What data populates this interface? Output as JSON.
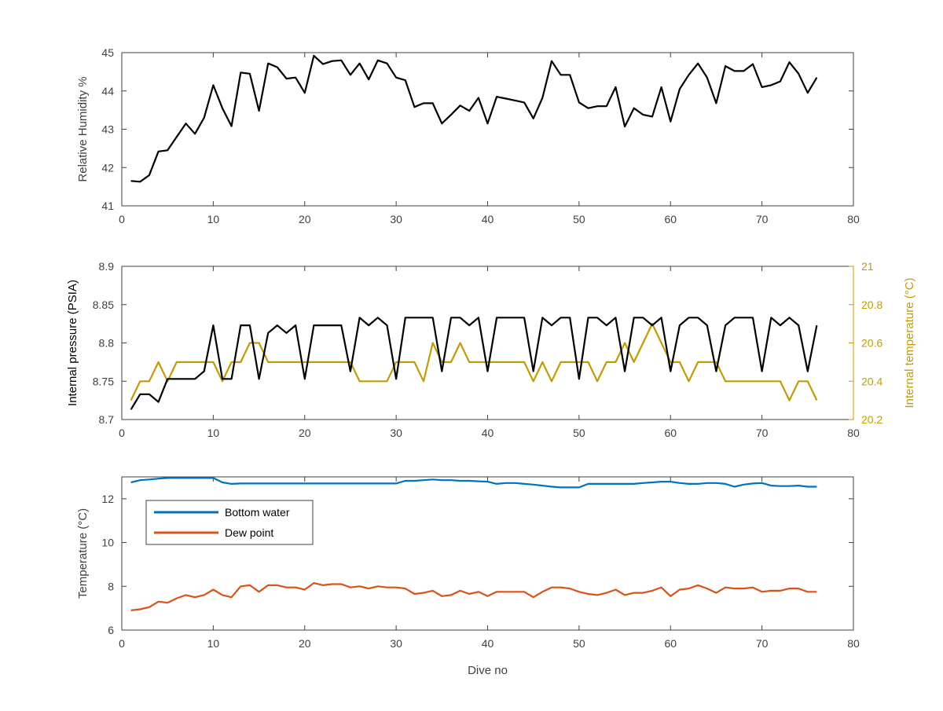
{
  "figure": {
    "xlabel": "Dive no"
  },
  "chart_data": [
    {
      "type": "line",
      "title": "",
      "xlabel": "",
      "ylabel": "Relative Humidity %",
      "xlim": [
        0,
        80
      ],
      "ylim": [
        41,
        45
      ],
      "xticks": [
        0,
        10,
        20,
        30,
        40,
        50,
        60,
        70,
        80
      ],
      "yticks": [
        41,
        42,
        43,
        44,
        45
      ],
      "grid": false,
      "series": [
        {
          "color": "#000000",
          "x": [
            1,
            2,
            3,
            4,
            5,
            6,
            7,
            8,
            9,
            10,
            11,
            12,
            13,
            14,
            15,
            16,
            17,
            18,
            19,
            20,
            21,
            22,
            23,
            24,
            25,
            26,
            27,
            28,
            29,
            30,
            31,
            32,
            33,
            34,
            35,
            36,
            37,
            38,
            39,
            40,
            41,
            42,
            43,
            44,
            45,
            46,
            47,
            48,
            49,
            50,
            51,
            52,
            53,
            54,
            55,
            56,
            57,
            58,
            59,
            60,
            61,
            62,
            63,
            64,
            65,
            66,
            67,
            68,
            69,
            70,
            71,
            72,
            73,
            74,
            75,
            76
          ],
          "y": [
            41.65,
            41.63,
            41.8,
            42.42,
            42.45,
            42.8,
            43.15,
            42.88,
            43.3,
            44.15,
            43.55,
            43.08,
            44.48,
            44.45,
            43.48,
            44.72,
            44.62,
            44.32,
            44.35,
            43.95,
            44.92,
            44.7,
            44.78,
            44.8,
            44.42,
            44.72,
            44.3,
            44.8,
            44.72,
            44.35,
            44.28,
            43.58,
            43.68,
            43.68,
            43.15,
            43.38,
            43.62,
            43.48,
            43.82,
            43.15,
            43.85,
            43.8,
            43.75,
            43.7,
            43.28,
            43.82,
            44.78,
            44.42,
            44.42,
            43.7,
            43.55,
            43.6,
            43.6,
            44.1,
            43.07,
            43.55,
            43.38,
            43.33,
            44.1,
            43.2,
            44.05,
            44.42,
            44.72,
            44.35,
            43.68,
            44.65,
            44.52,
            44.52,
            44.7,
            44.1,
            44.15,
            44.25,
            44.75,
            44.45,
            43.95,
            44.35
          ]
        }
      ]
    },
    {
      "type": "line",
      "title": "",
      "xlabel": "",
      "ylabel": "Internal pressure (PSIA)",
      "y2label": "Internal temperature (°C)",
      "xlim": [
        0,
        80
      ],
      "ylim": [
        8.7,
        8.9
      ],
      "y2lim": [
        20.2,
        21
      ],
      "xticks": [
        0,
        10,
        20,
        30,
        40,
        50,
        60,
        70,
        80
      ],
      "yticks": [
        8.7,
        8.75,
        8.8,
        8.85,
        8.9
      ],
      "y2ticks": [
        20.2,
        20.4,
        20.6,
        20.8,
        21
      ],
      "grid": false,
      "series": [
        {
          "axis": "left",
          "color": "#000000",
          "x": [
            1,
            2,
            3,
            4,
            5,
            6,
            7,
            8,
            9,
            10,
            11,
            12,
            13,
            14,
            15,
            16,
            17,
            18,
            19,
            20,
            21,
            22,
            23,
            24,
            25,
            26,
            27,
            28,
            29,
            30,
            31,
            32,
            33,
            34,
            35,
            36,
            37,
            38,
            39,
            40,
            41,
            42,
            43,
            44,
            45,
            46,
            47,
            48,
            49,
            50,
            51,
            52,
            53,
            54,
            55,
            56,
            57,
            58,
            59,
            60,
            61,
            62,
            63,
            64,
            65,
            66,
            67,
            68,
            69,
            70,
            71,
            72,
            73,
            74,
            75,
            76
          ],
          "y": [
            8.713,
            8.733,
            8.733,
            8.723,
            8.753,
            8.753,
            8.753,
            8.753,
            8.763,
            8.823,
            8.753,
            8.753,
            8.823,
            8.823,
            8.753,
            8.813,
            8.823,
            8.813,
            8.823,
            8.753,
            8.823,
            8.823,
            8.823,
            8.823,
            8.763,
            8.833,
            8.823,
            8.833,
            8.823,
            8.753,
            8.833,
            8.833,
            8.833,
            8.833,
            8.763,
            8.833,
            8.833,
            8.823,
            8.833,
            8.763,
            8.833,
            8.833,
            8.833,
            8.833,
            8.763,
            8.833,
            8.823,
            8.833,
            8.833,
            8.753,
            8.833,
            8.833,
            8.823,
            8.833,
            8.763,
            8.833,
            8.833,
            8.823,
            8.833,
            8.763,
            8.823,
            8.833,
            8.833,
            8.823,
            8.763,
            8.823,
            8.833,
            8.833,
            8.833,
            8.763,
            8.833,
            8.823,
            8.833,
            8.823,
            8.763,
            8.823
          ]
        },
        {
          "axis": "right",
          "color": "#C39B00",
          "x": [
            1,
            2,
            3,
            4,
            5,
            6,
            7,
            8,
            9,
            10,
            11,
            12,
            13,
            14,
            15,
            16,
            17,
            18,
            19,
            20,
            21,
            22,
            23,
            24,
            25,
            26,
            27,
            28,
            29,
            30,
            31,
            32,
            33,
            34,
            35,
            36,
            37,
            38,
            39,
            40,
            41,
            42,
            43,
            44,
            45,
            46,
            47,
            48,
            49,
            50,
            51,
            52,
            53,
            54,
            55,
            56,
            57,
            58,
            59,
            60,
            61,
            62,
            63,
            64,
            65,
            66,
            67,
            68,
            69,
            70,
            71,
            72,
            73,
            74,
            75,
            76
          ],
          "y": [
            20.3,
            20.4,
            20.4,
            20.5,
            20.4,
            20.5,
            20.5,
            20.5,
            20.5,
            20.5,
            20.4,
            20.5,
            20.5,
            20.6,
            20.6,
            20.5,
            20.5,
            20.5,
            20.5,
            20.5,
            20.5,
            20.5,
            20.5,
            20.5,
            20.5,
            20.4,
            20.4,
            20.4,
            20.4,
            20.5,
            20.5,
            20.5,
            20.4,
            20.6,
            20.5,
            20.5,
            20.6,
            20.5,
            20.5,
            20.5,
            20.5,
            20.5,
            20.5,
            20.5,
            20.4,
            20.5,
            20.4,
            20.5,
            20.5,
            20.5,
            20.5,
            20.4,
            20.5,
            20.5,
            20.6,
            20.5,
            20.6,
            20.7,
            20.6,
            20.5,
            20.5,
            20.4,
            20.5,
            20.5,
            20.5,
            20.4,
            20.4,
            20.4,
            20.4,
            20.4,
            20.4,
            20.4,
            20.3,
            20.4,
            20.4,
            20.3
          ]
        }
      ]
    },
    {
      "type": "line",
      "title": "",
      "xlabel": "Dive no",
      "ylabel": "Temperature (°C)",
      "xlim": [
        0,
        80
      ],
      "ylim": [
        6,
        13
      ],
      "xticks": [
        0,
        10,
        20,
        30,
        40,
        50,
        60,
        70,
        80
      ],
      "yticks": [
        6,
        8,
        10,
        12
      ],
      "grid": false,
      "legend": "top-left",
      "series": [
        {
          "name": "Bottom water",
          "color": "#0072BD",
          "x": [
            1,
            2,
            3,
            4,
            5,
            6,
            7,
            8,
            9,
            10,
            11,
            12,
            13,
            14,
            15,
            16,
            17,
            18,
            19,
            20,
            21,
            22,
            23,
            24,
            25,
            26,
            27,
            28,
            29,
            30,
            31,
            32,
            33,
            34,
            35,
            36,
            37,
            38,
            39,
            40,
            41,
            42,
            43,
            44,
            45,
            46,
            47,
            48,
            49,
            50,
            51,
            52,
            53,
            54,
            55,
            56,
            57,
            58,
            59,
            60,
            61,
            62,
            63,
            64,
            65,
            66,
            67,
            68,
            69,
            70,
            71,
            72,
            73,
            74,
            75,
            76
          ],
          "y": [
            12.75,
            12.85,
            12.88,
            12.92,
            12.95,
            12.95,
            12.95,
            12.95,
            12.95,
            12.95,
            12.75,
            12.68,
            12.7,
            12.7,
            12.7,
            12.7,
            12.7,
            12.7,
            12.7,
            12.7,
            12.7,
            12.7,
            12.7,
            12.7,
            12.7,
            12.7,
            12.7,
            12.7,
            12.7,
            12.7,
            12.82,
            12.82,
            12.85,
            12.88,
            12.85,
            12.85,
            12.82,
            12.82,
            12.8,
            12.78,
            12.68,
            12.72,
            12.72,
            12.68,
            12.65,
            12.6,
            12.55,
            12.52,
            12.52,
            12.52,
            12.68,
            12.68,
            12.68,
            12.68,
            12.68,
            12.68,
            12.72,
            12.75,
            12.78,
            12.78,
            12.72,
            12.68,
            12.68,
            12.72,
            12.72,
            12.68,
            12.55,
            12.65,
            12.7,
            12.72,
            12.6,
            12.58,
            12.58,
            12.6,
            12.55,
            12.55
          ]
        },
        {
          "name": "Dew point",
          "color": "#D95319",
          "x": [
            1,
            2,
            3,
            4,
            5,
            6,
            7,
            8,
            9,
            10,
            11,
            12,
            13,
            14,
            15,
            16,
            17,
            18,
            19,
            20,
            21,
            22,
            23,
            24,
            25,
            26,
            27,
            28,
            29,
            30,
            31,
            32,
            33,
            34,
            35,
            36,
            37,
            38,
            39,
            40,
            41,
            42,
            43,
            44,
            45,
            46,
            47,
            48,
            49,
            50,
            51,
            52,
            53,
            54,
            55,
            56,
            57,
            58,
            59,
            60,
            61,
            62,
            63,
            64,
            65,
            66,
            67,
            68,
            69,
            70,
            71,
            72,
            73,
            74,
            75,
            76
          ],
          "y": [
            6.9,
            6.95,
            7.05,
            7.3,
            7.25,
            7.45,
            7.6,
            7.5,
            7.6,
            7.85,
            7.6,
            7.5,
            8.0,
            8.05,
            7.75,
            8.05,
            8.05,
            7.95,
            7.95,
            7.85,
            8.15,
            8.05,
            8.1,
            8.1,
            7.95,
            8.0,
            7.9,
            8.0,
            7.95,
            7.95,
            7.9,
            7.65,
            7.7,
            7.8,
            7.55,
            7.6,
            7.8,
            7.65,
            7.75,
            7.55,
            7.75,
            7.75,
            7.75,
            7.75,
            7.5,
            7.75,
            7.95,
            7.95,
            7.9,
            7.75,
            7.65,
            7.6,
            7.7,
            7.85,
            7.6,
            7.7,
            7.7,
            7.8,
            7.95,
            7.55,
            7.85,
            7.9,
            8.05,
            7.9,
            7.7,
            7.95,
            7.9,
            7.9,
            7.95,
            7.75,
            7.8,
            7.8,
            7.9,
            7.9,
            7.75,
            7.75
          ]
        }
      ]
    }
  ]
}
